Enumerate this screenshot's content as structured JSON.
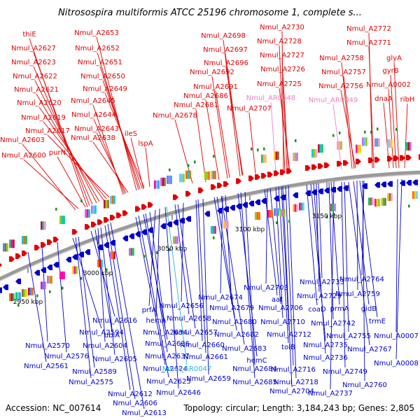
{
  "title": "Nitrosospira multiformis ATCC 25196 chromosome 1, complete s...",
  "footer": {
    "accession": "Accession: NC_007614",
    "topology": "Topology: circular; Length: 3,184,243 bp; Genes: 2,805"
  },
  "colors": {
    "forward": "#e00000",
    "reverse": "#0000cc",
    "rna_forward": "#f080c0",
    "rna_reverse": "#20b8e0",
    "backbone": "#8a8a8a",
    "marker": "#228b22"
  },
  "kbp_ticks": [
    "2950 kbp",
    "3000 kbp",
    "3050 kbp",
    "3100 kbp",
    "3150 kbp"
  ],
  "upper_labels": [
    {
      "text": "thiE",
      "kind": "forward"
    },
    {
      "text": "Nmul_A2627",
      "kind": "forward"
    },
    {
      "text": "Nmul_A2623",
      "kind": "forward"
    },
    {
      "text": "Nmul_A2622",
      "kind": "forward"
    },
    {
      "text": "Nmul_A2621",
      "kind": "forward"
    },
    {
      "text": "Nmul_A2620",
      "kind": "forward"
    },
    {
      "text": "Nmul_A2619",
      "kind": "forward"
    },
    {
      "text": "Nmul_A2617",
      "kind": "forward"
    },
    {
      "text": "Nmul_A2603",
      "kind": "forward"
    },
    {
      "text": "Nmul_A2600",
      "kind": "forward"
    },
    {
      "text": "purN",
      "kind": "forward"
    },
    {
      "text": "Nmul_A2653",
      "kind": "forward"
    },
    {
      "text": "Nmul_A2652",
      "kind": "forward"
    },
    {
      "text": "Nmul_A2651",
      "kind": "forward"
    },
    {
      "text": "Nmul_A2650",
      "kind": "forward"
    },
    {
      "text": "Nmul_A2649",
      "kind": "forward"
    },
    {
      "text": "Nmul_A2645",
      "kind": "forward"
    },
    {
      "text": "Nmul_A2644",
      "kind": "forward"
    },
    {
      "text": "Nmul_A2643",
      "kind": "forward"
    },
    {
      "text": "Nmul_A2638",
      "kind": "forward"
    },
    {
      "text": "ileS",
      "kind": "forward"
    },
    {
      "text": "lspA",
      "kind": "forward"
    },
    {
      "text": "Nmul_A2698",
      "kind": "forward"
    },
    {
      "text": "Nmul_A2697",
      "kind": "forward"
    },
    {
      "text": "Nmul_A2696",
      "kind": "forward"
    },
    {
      "text": "Nmul_A2692",
      "kind": "forward"
    },
    {
      "text": "Nmul_A2691",
      "kind": "forward"
    },
    {
      "text": "Nmul_A2686",
      "kind": "forward"
    },
    {
      "text": "Nmul_A2681",
      "kind": "forward"
    },
    {
      "text": "Nmul_A2678",
      "kind": "forward"
    },
    {
      "text": "Nmul_A2707",
      "kind": "forward"
    },
    {
      "text": "Nmul_A2730",
      "kind": "forward"
    },
    {
      "text": "Nmul_A2728",
      "kind": "forward"
    },
    {
      "text": "Nmul_A2727",
      "kind": "forward"
    },
    {
      "text": "Nmul_A2726",
      "kind": "forward"
    },
    {
      "text": "Nmul_A2725",
      "kind": "forward"
    },
    {
      "text": "Nmul_AR0048",
      "kind": "rna_forward"
    },
    {
      "text": "Nmul_A2758",
      "kind": "forward"
    },
    {
      "text": "Nmul_A2757",
      "kind": "forward"
    },
    {
      "text": "Nmul_A2756",
      "kind": "forward"
    },
    {
      "text": "Nmul_AR0049",
      "kind": "rna_forward"
    },
    {
      "text": "Nmul_A2772",
      "kind": "forward"
    },
    {
      "text": "Nmul_A2771",
      "kind": "forward"
    },
    {
      "text": "glyA",
      "kind": "forward"
    },
    {
      "text": "gyrB",
      "kind": "forward"
    },
    {
      "text": "Nmul_A0002",
      "kind": "forward"
    },
    {
      "text": "dnaA",
      "kind": "forward"
    },
    {
      "text": "ribH",
      "kind": "forward"
    }
  ],
  "lower_labels": [
    {
      "text": "Nmul_A2570",
      "kind": "reverse"
    },
    {
      "text": "Nmul_A2576",
      "kind": "reverse"
    },
    {
      "text": "Nmul_A2561",
      "kind": "reverse"
    },
    {
      "text": "Nmul_A2594",
      "kind": "reverse"
    },
    {
      "text": "Nmul_A2589",
      "kind": "reverse"
    },
    {
      "text": "Nmul_A2575",
      "kind": "reverse"
    },
    {
      "text": "Nmul_A2616",
      "kind": "reverse"
    },
    {
      "text": "ubiA",
      "kind": "reverse"
    },
    {
      "text": "Nmul_A2604",
      "kind": "reverse"
    },
    {
      "text": "Nmul_A2605",
      "kind": "reverse"
    },
    {
      "text": "Nmul_A2612",
      "kind": "reverse"
    },
    {
      "text": "Nmul_A2606",
      "kind": "reverse"
    },
    {
      "text": "Nmul_A2613",
      "kind": "reverse"
    },
    {
      "text": "prfA",
      "kind": "reverse"
    },
    {
      "text": "hemA",
      "kind": "reverse"
    },
    {
      "text": "Nmul_A2634",
      "kind": "reverse"
    },
    {
      "text": "Nmul_A2636",
      "kind": "reverse"
    },
    {
      "text": "Nmul_A2637",
      "kind": "reverse"
    },
    {
      "text": "Nmul_A2624",
      "kind": "reverse"
    },
    {
      "text": "Nmul_A2625",
      "kind": "reverse"
    },
    {
      "text": "Nmul_A2646",
      "kind": "reverse"
    },
    {
      "text": "Nmul_A2656",
      "kind": "reverse"
    },
    {
      "text": "Nmul_A2658",
      "kind": "reverse"
    },
    {
      "text": "Nmul_A2657",
      "kind": "reverse"
    },
    {
      "text": "Nmul_A2660",
      "kind": "reverse"
    },
    {
      "text": "Nmul_A2661",
      "kind": "reverse"
    },
    {
      "text": "Nmul_AR0047",
      "kind": "rna_reverse"
    },
    {
      "text": "Nmul_A2659",
      "kind": "reverse"
    },
    {
      "text": "Nmul_A2674",
      "kind": "reverse"
    },
    {
      "text": "Nmul_A2679",
      "kind": "reverse"
    },
    {
      "text": "Nmul_A2680",
      "kind": "reverse"
    },
    {
      "text": "Nmul_A2682",
      "kind": "reverse"
    },
    {
      "text": "Nmul_A2683",
      "kind": "reverse"
    },
    {
      "text": "hemC",
      "kind": "reverse"
    },
    {
      "text": "Nmul_A2684",
      "kind": "reverse"
    },
    {
      "text": "Nmul_A2685",
      "kind": "reverse"
    },
    {
      "text": "Nmul_A2703",
      "kind": "reverse"
    },
    {
      "text": "aat",
      "kind": "reverse"
    },
    {
      "text": "Nmul_A2706",
      "kind": "reverse"
    },
    {
      "text": "Nmul_A2710",
      "kind": "reverse"
    },
    {
      "text": "Nmul_A2712",
      "kind": "reverse"
    },
    {
      "text": "tolB",
      "kind": "reverse"
    },
    {
      "text": "Nmul_A2716",
      "kind": "reverse"
    },
    {
      "text": "Nmul_A2718",
      "kind": "reverse"
    },
    {
      "text": "Nmul_A2704",
      "kind": "reverse"
    },
    {
      "text": "Nmul_A2733",
      "kind": "reverse"
    },
    {
      "text": "Nmul_A2729",
      "kind": "reverse"
    },
    {
      "text": "coaD",
      "kind": "reverse"
    },
    {
      "text": "prmA",
      "kind": "reverse"
    },
    {
      "text": "Nmul_A2742",
      "kind": "reverse"
    },
    {
      "text": "Nmul_A2735",
      "kind": "reverse"
    },
    {
      "text": "Nmul_A2736",
      "kind": "reverse"
    },
    {
      "text": "Nmul_A2737",
      "kind": "reverse"
    },
    {
      "text": "Nmul_A2764",
      "kind": "reverse"
    },
    {
      "text": "Nmul_A2759",
      "kind": "reverse"
    },
    {
      "text": "gidB",
      "kind": "reverse"
    },
    {
      "text": "trmE",
      "kind": "reverse"
    },
    {
      "text": "Nmul_A2755",
      "kind": "reverse"
    },
    {
      "text": "Nmul_A2749",
      "kind": "reverse"
    },
    {
      "text": "Nmul_A2767",
      "kind": "reverse"
    },
    {
      "text": "Nmul_A2760",
      "kind": "reverse"
    },
    {
      "text": "Nmul_A0007",
      "kind": "reverse"
    },
    {
      "text": "Nmul_A0008",
      "kind": "reverse"
    }
  ]
}
